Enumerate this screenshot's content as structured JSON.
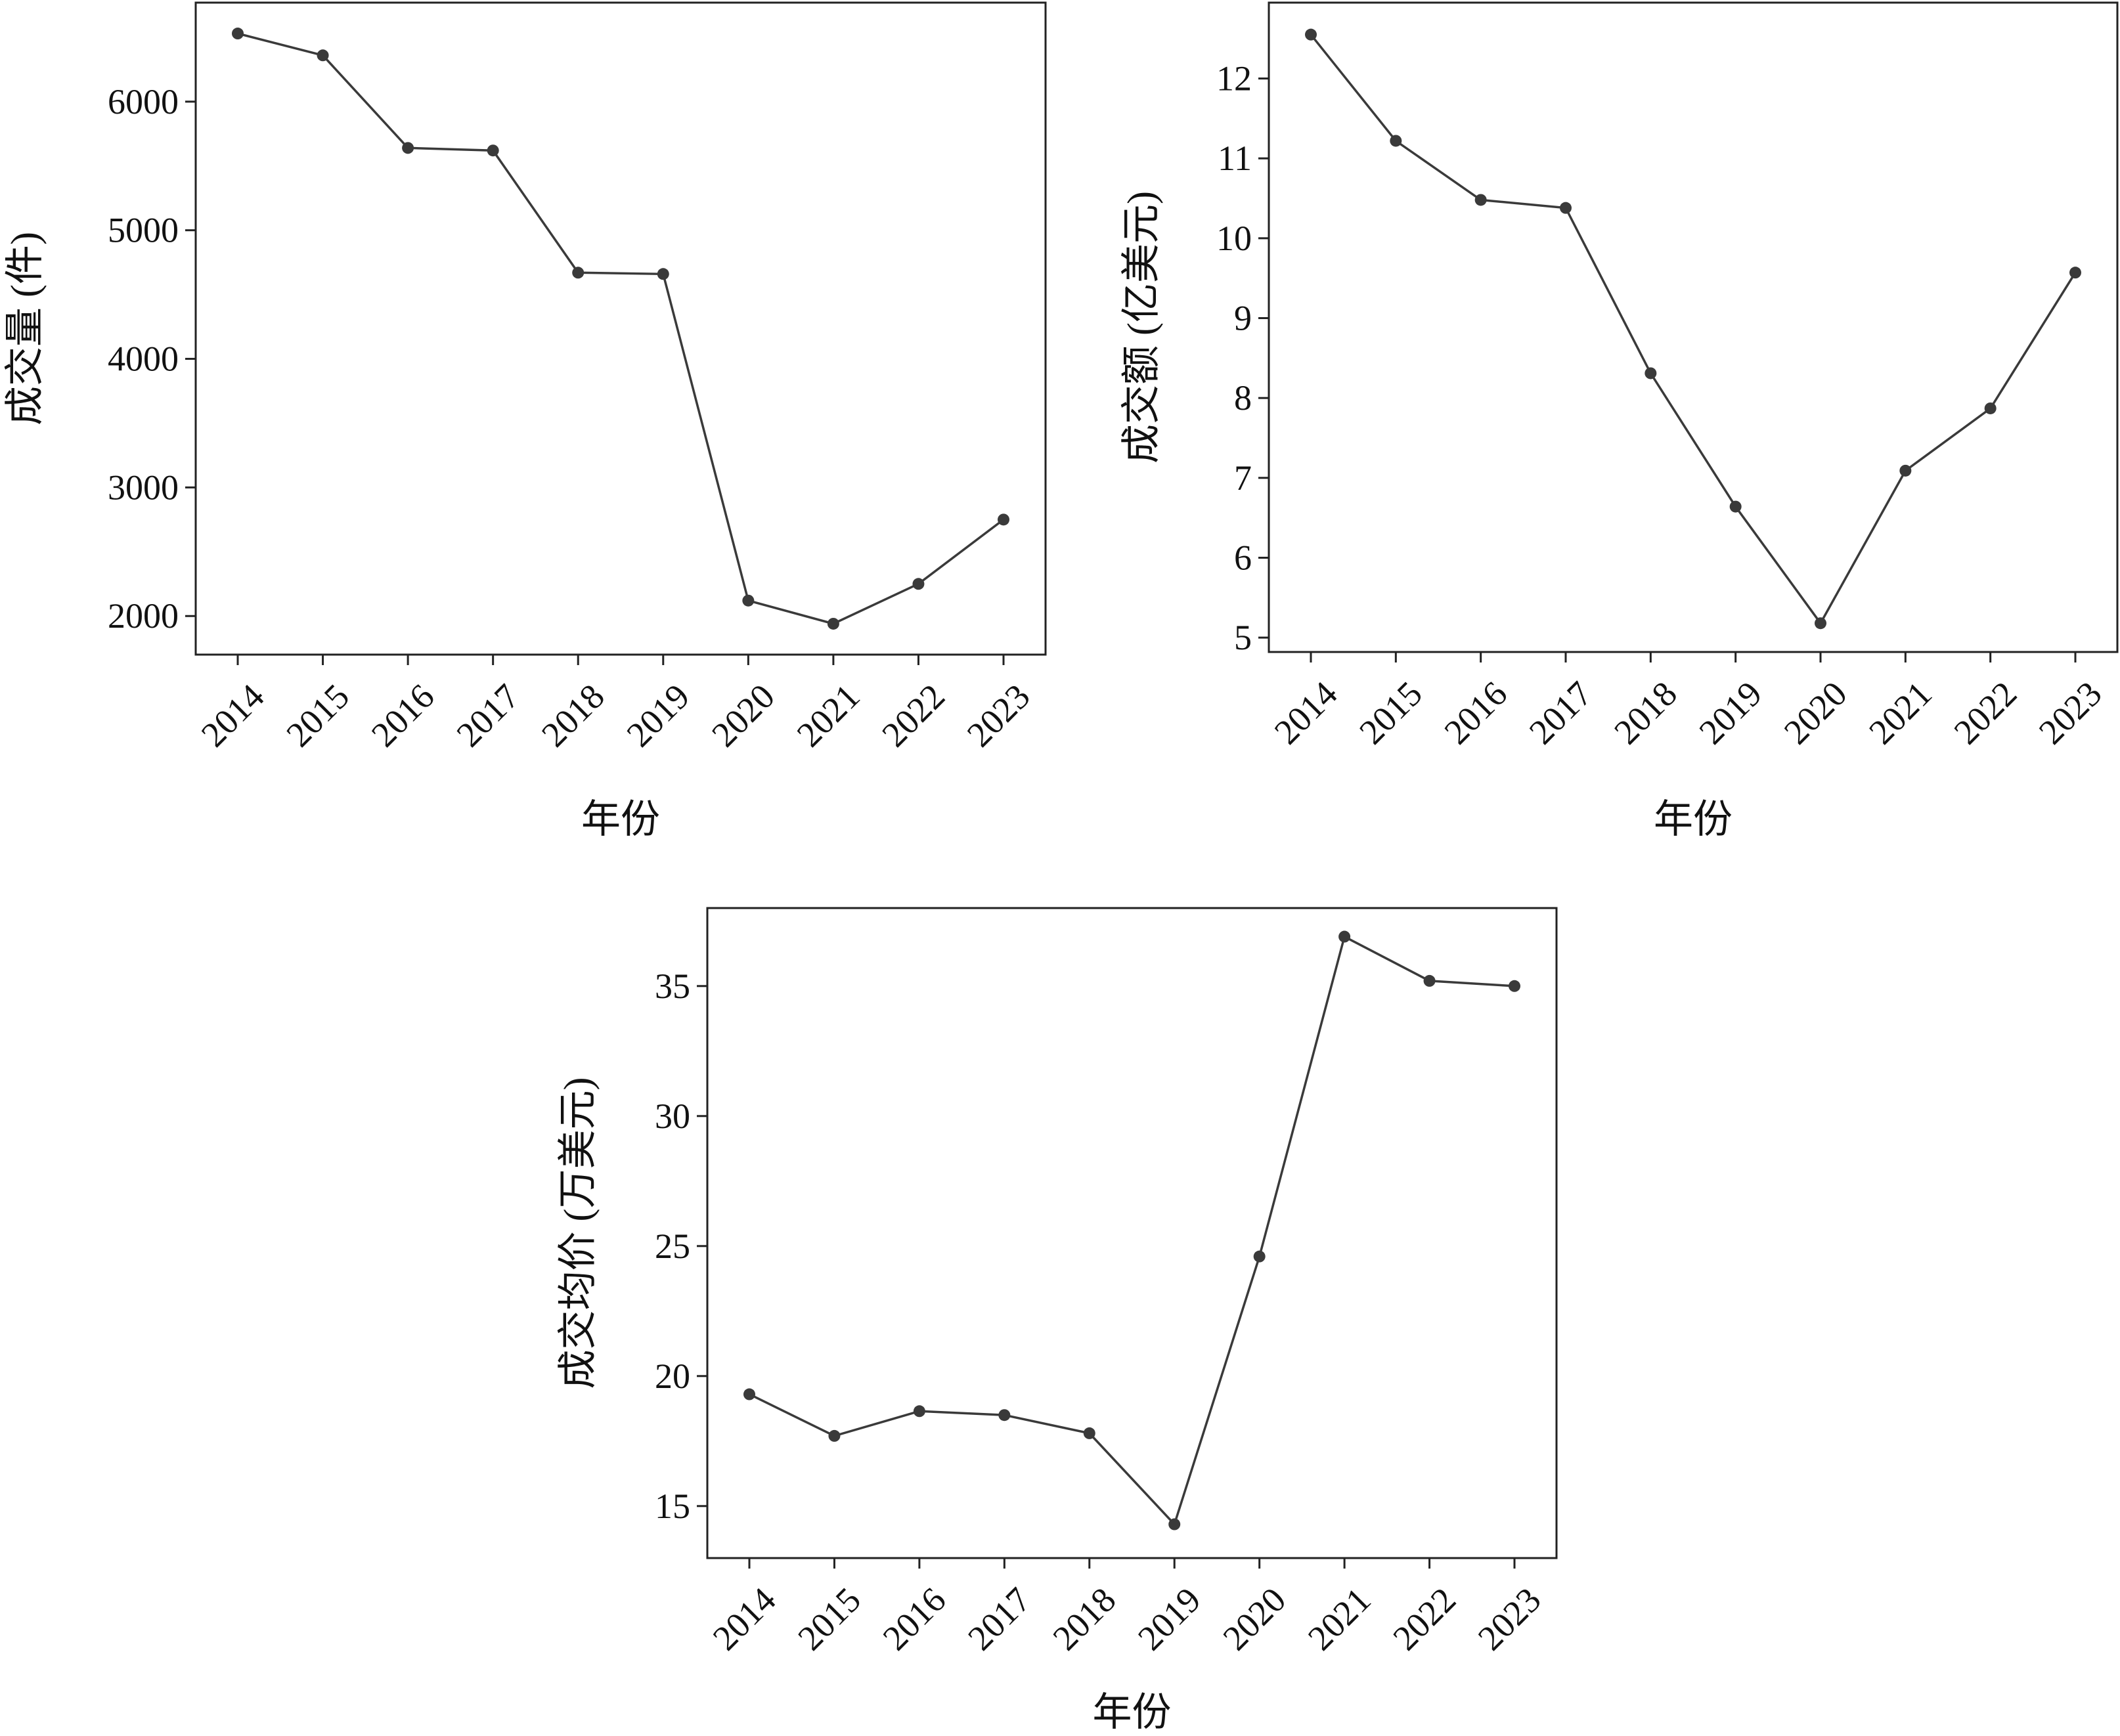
{
  "chart_data": [
    {
      "type": "line",
      "title": "",
      "xlabel": "年份",
      "ylabel": "成交量 (件)",
      "categories": [
        "2014",
        "2015",
        "2016",
        "2017",
        "2018",
        "2019",
        "2020",
        "2021",
        "2022",
        "2023"
      ],
      "series": [
        {
          "values": [
            6530,
            6360,
            5640,
            5620,
            4670,
            4660,
            2120,
            1940,
            2250,
            2750
          ]
        }
      ],
      "yticks": [
        2000,
        3000,
        4000,
        5000,
        6000
      ],
      "ylim": [
        1700,
        6770
      ],
      "grid": false,
      "color": "#3a3a3a"
    },
    {
      "type": "line",
      "title": "",
      "xlabel": "年份",
      "ylabel": "成交额 (亿美元)",
      "categories": [
        "2014",
        "2015",
        "2016",
        "2017",
        "2018",
        "2019",
        "2020",
        "2021",
        "2022",
        "2023"
      ],
      "series": [
        {
          "values": [
            12.55,
            11.22,
            10.48,
            10.38,
            8.31,
            6.64,
            5.18,
            7.09,
            7.87,
            9.57
          ]
        }
      ],
      "yticks": [
        5,
        6,
        7,
        8,
        9,
        10,
        11,
        12
      ],
      "ylim": [
        4.82,
        12.95
      ],
      "grid": false,
      "color": "#3a3a3a"
    },
    {
      "type": "line",
      "title": "",
      "xlabel": "年份",
      "ylabel": "成交均价 (万美元)",
      "categories": [
        "2014",
        "2015",
        "2016",
        "2017",
        "2018",
        "2019",
        "2020",
        "2021",
        "2022",
        "2023"
      ],
      "series": [
        {
          "values": [
            19.3,
            17.7,
            18.65,
            18.5,
            17.8,
            14.3,
            24.6,
            36.9,
            35.2,
            35.0
          ]
        }
      ],
      "yticks": [
        15,
        20,
        25,
        30,
        35
      ],
      "ylim": [
        13.0,
        38.0
      ],
      "grid": false,
      "color": "#3a3a3a"
    }
  ]
}
